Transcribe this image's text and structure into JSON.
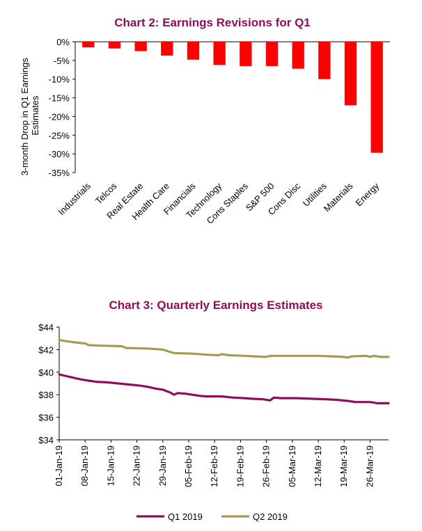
{
  "chart_data": [
    {
      "type": "bar",
      "title": "Chart 2: Earnings Revisions for Q1",
      "ylabel_lines": [
        "3-month Drop in Q1 Earnings",
        "Estimates"
      ],
      "xlabel": "",
      "categories": [
        "Industrials",
        "Telcos",
        "Real Estate",
        "Health Care",
        "Financials",
        "Technology",
        "Cons Staples",
        "S&P 500",
        "Cons Disc",
        "Utilities",
        "Materials",
        "Energy"
      ],
      "values": [
        -1.5,
        -1.8,
        -2.5,
        -3.7,
        -4.8,
        -6.2,
        -6.5,
        -6.5,
        -7.2,
        -10.0,
        -17.0,
        -29.7
      ],
      "ylim": [
        -35,
        0
      ],
      "yticks": [
        0,
        -5,
        -10,
        -15,
        -20,
        -25,
        -30,
        -35
      ],
      "ytick_labels": [
        "0%",
        "-5%",
        "-10%",
        "-15%",
        "-20%",
        "-25%",
        "-30%",
        "-35%"
      ],
      "bar_color": "#FF0000",
      "grid": false
    },
    {
      "type": "line",
      "title": "Chart 3: Quarterly Earnings Estimates",
      "xlabel": "",
      "ylabel": "",
      "x_start": "2019-01-01",
      "x_end": "2019-03-31",
      "xticks": [
        "2019-01-01",
        "2019-01-08",
        "2019-01-15",
        "2019-01-22",
        "2019-01-29",
        "2019-02-05",
        "2019-02-12",
        "2019-02-19",
        "2019-02-26",
        "2019-03-05",
        "2019-03-12",
        "2019-03-19",
        "2019-03-26"
      ],
      "xtick_labels": [
        "01-Jan-19",
        "08-Jan-19",
        "15-Jan-19",
        "22-Jan-19",
        "29-Jan-19",
        "05-Feb-19",
        "12-Feb-19",
        "19-Feb-19",
        "26-Feb-19",
        "05-Mar-19",
        "12-Mar-19",
        "19-Mar-19",
        "26-Mar-19"
      ],
      "ylim": [
        34,
        44
      ],
      "yticks": [
        34,
        36,
        38,
        40,
        42,
        44
      ],
      "ytick_labels": [
        "$34",
        "$36",
        "$38",
        "$40",
        "$42",
        "$44"
      ],
      "grid": false,
      "legend_position": "bottom",
      "series": [
        {
          "name": "Q1 2019",
          "color": "#8B0F5A",
          "points": [
            [
              "2019-01-01",
              39.8
            ],
            [
              "2019-01-03",
              39.65
            ],
            [
              "2019-01-05",
              39.5
            ],
            [
              "2019-01-07",
              39.35
            ],
            [
              "2019-01-09",
              39.25
            ],
            [
              "2019-01-11",
              39.15
            ],
            [
              "2019-01-14",
              39.1
            ],
            [
              "2019-01-17",
              39.0
            ],
            [
              "2019-01-20",
              38.9
            ],
            [
              "2019-01-23",
              38.8
            ],
            [
              "2019-01-25",
              38.7
            ],
            [
              "2019-01-27",
              38.55
            ],
            [
              "2019-01-29",
              38.45
            ],
            [
              "2019-01-31",
              38.2
            ],
            [
              "2019-02-01",
              38.0
            ],
            [
              "2019-02-02",
              38.15
            ],
            [
              "2019-02-04",
              38.1
            ],
            [
              "2019-02-06",
              38.0
            ],
            [
              "2019-02-08",
              37.9
            ],
            [
              "2019-02-10",
              37.85
            ],
            [
              "2019-02-14",
              37.85
            ],
            [
              "2019-02-17",
              37.75
            ],
            [
              "2019-02-20",
              37.7
            ],
            [
              "2019-02-22",
              37.65
            ],
            [
              "2019-02-25",
              37.6
            ],
            [
              "2019-02-27",
              37.5
            ],
            [
              "2019-02-28",
              37.75
            ],
            [
              "2019-03-02",
              37.7
            ],
            [
              "2019-03-06",
              37.7
            ],
            [
              "2019-03-10",
              37.65
            ],
            [
              "2019-03-14",
              37.6
            ],
            [
              "2019-03-17",
              37.55
            ],
            [
              "2019-03-20",
              37.45
            ],
            [
              "2019-03-22",
              37.35
            ],
            [
              "2019-03-26",
              37.35
            ],
            [
              "2019-03-28",
              37.25
            ],
            [
              "2019-03-31",
              37.25
            ]
          ]
        },
        {
          "name": "Q2 2019",
          "color": "#A69A55",
          "points": [
            [
              "2019-01-01",
              42.85
            ],
            [
              "2019-01-03",
              42.75
            ],
            [
              "2019-01-05",
              42.65
            ],
            [
              "2019-01-08",
              42.55
            ],
            [
              "2019-01-09",
              42.4
            ],
            [
              "2019-01-12",
              42.35
            ],
            [
              "2019-01-18",
              42.3
            ],
            [
              "2019-01-19",
              42.15
            ],
            [
              "2019-01-25",
              42.1
            ],
            [
              "2019-01-29",
              42.0
            ],
            [
              "2019-01-31",
              41.8
            ],
            [
              "2019-02-01",
              41.7
            ],
            [
              "2019-02-06",
              41.65
            ],
            [
              "2019-02-10",
              41.55
            ],
            [
              "2019-02-13",
              41.5
            ],
            [
              "2019-02-14",
              41.6
            ],
            [
              "2019-02-16",
              41.5
            ],
            [
              "2019-02-20",
              41.45
            ],
            [
              "2019-02-23",
              41.4
            ],
            [
              "2019-02-26",
              41.35
            ],
            [
              "2019-02-27",
              41.45
            ],
            [
              "2019-03-05",
              41.45
            ],
            [
              "2019-03-12",
              41.45
            ],
            [
              "2019-03-16",
              41.4
            ],
            [
              "2019-03-19",
              41.35
            ],
            [
              "2019-03-20",
              41.3
            ],
            [
              "2019-03-21",
              41.4
            ],
            [
              "2019-03-25",
              41.45
            ],
            [
              "2019-03-26",
              41.35
            ],
            [
              "2019-03-27",
              41.45
            ],
            [
              "2019-03-29",
              41.35
            ],
            [
              "2019-03-31",
              41.35
            ]
          ]
        }
      ]
    }
  ]
}
